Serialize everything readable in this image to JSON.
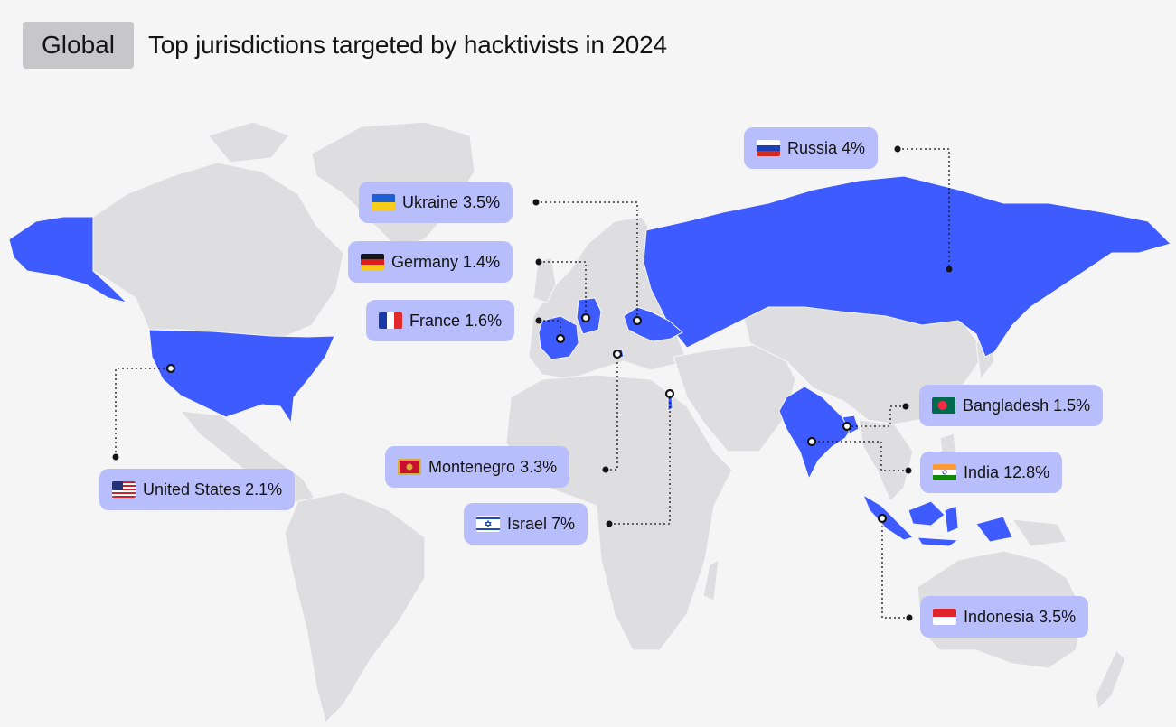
{
  "header": {
    "badge": "Global",
    "title": "Top jurisdictions targeted by hacktivists in 2024"
  },
  "colors": {
    "background": "#f5f5f6",
    "land": "#dedee0",
    "highlight": "#3e5bff",
    "label_bg": "#b8bdfb",
    "badge_bg": "#c7c7c9"
  },
  "countries": [
    {
      "key": "russia",
      "name": "Russia",
      "value": "4%",
      "flag": "russia-flag-icon"
    },
    {
      "key": "ukraine",
      "name": "Ukraine",
      "value": "3.5%",
      "flag": "ukraine-flag-icon"
    },
    {
      "key": "germany",
      "name": "Germany",
      "value": "1.4%",
      "flag": "germany-flag-icon"
    },
    {
      "key": "france",
      "name": "France",
      "value": "1.6%",
      "flag": "france-flag-icon"
    },
    {
      "key": "united_states",
      "name": "United States",
      "value": "2.1%",
      "flag": "us-flag-icon"
    },
    {
      "key": "montenegro",
      "name": "Montenegro",
      "value": "3.3%",
      "flag": "montenegro-flag-icon"
    },
    {
      "key": "israel",
      "name": "Israel",
      "value": "7%",
      "flag": "israel-flag-icon"
    },
    {
      "key": "bangladesh",
      "name": "Bangladesh",
      "value": "1.5%",
      "flag": "bangladesh-flag-icon"
    },
    {
      "key": "india",
      "name": "India",
      "value": "12.8%",
      "flag": "india-flag-icon"
    },
    {
      "key": "indonesia",
      "name": "Indonesia",
      "value": "3.5%",
      "flag": "indonesia-flag-icon"
    }
  ]
}
